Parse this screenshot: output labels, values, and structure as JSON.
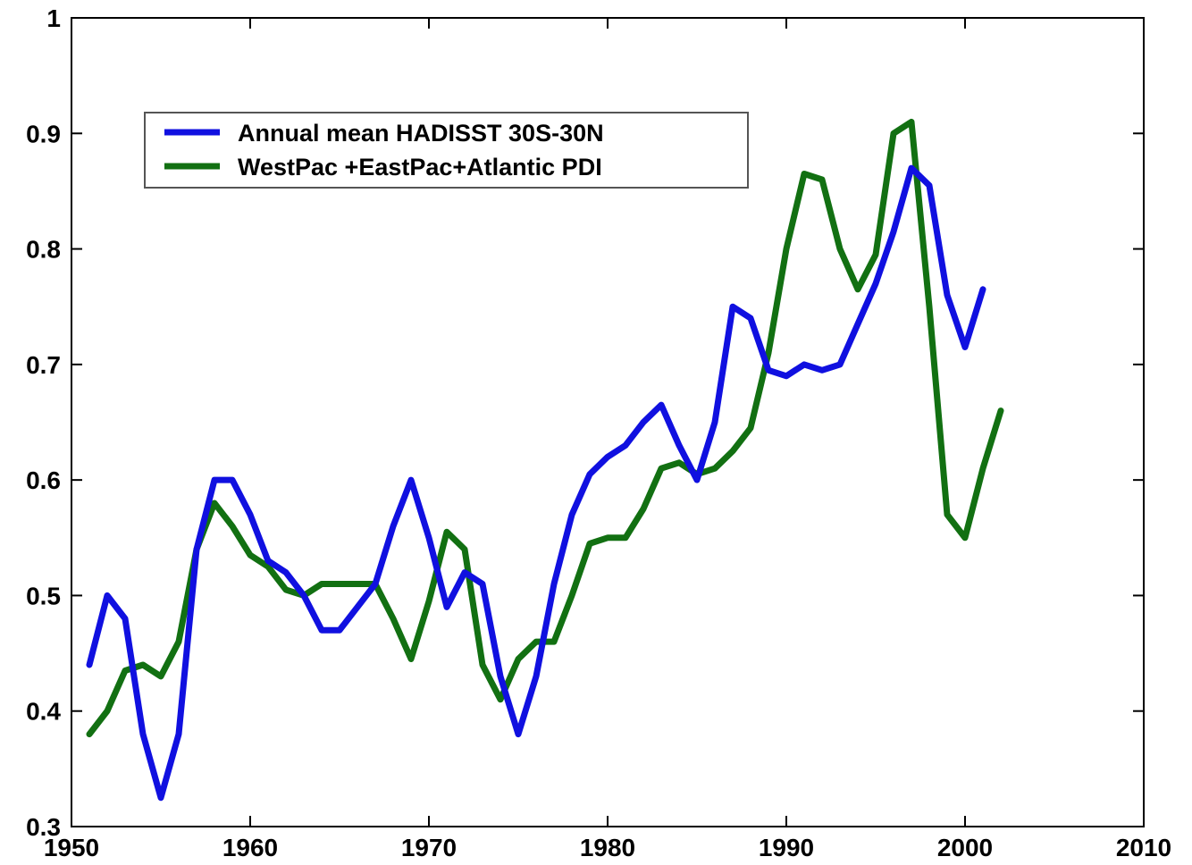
{
  "chart_data": {
    "type": "line",
    "title": "",
    "xlabel": "",
    "ylabel": "",
    "xlim": [
      1950,
      2010
    ],
    "ylim": [
      0.3,
      1.0
    ],
    "xticks": [
      1950,
      1960,
      1970,
      1980,
      1990,
      2000,
      2010
    ],
    "yticks": [
      0.3,
      0.4,
      0.5,
      0.6,
      0.7,
      0.8,
      0.9,
      1.0
    ],
    "x_tick_labels": [
      "1950",
      "1960",
      "1970",
      "1980",
      "1990",
      "2000",
      "2010"
    ],
    "y_tick_labels": [
      "0.3",
      "0.4",
      "0.5",
      "0.6",
      "0.7",
      "0.8",
      "0.9",
      "1"
    ],
    "grid": false,
    "legend_position": "top-left",
    "series": [
      {
        "name": "Annual mean HADISST 30S-30N",
        "color": "#1010e0",
        "x": [
          1951,
          1952,
          1953,
          1954,
          1955,
          1956,
          1957,
          1958,
          1959,
          1960,
          1961,
          1962,
          1963,
          1964,
          1965,
          1966,
          1967,
          1968,
          1969,
          1970,
          1971,
          1972,
          1973,
          1974,
          1975,
          1976,
          1977,
          1978,
          1979,
          1980,
          1981,
          1982,
          1983,
          1984,
          1985,
          1986,
          1987,
          1988,
          1989,
          1990,
          1991,
          1992,
          1993,
          1994,
          1995,
          1996,
          1997,
          1998,
          1999,
          2000,
          2001
        ],
        "y": [
          0.44,
          0.5,
          0.48,
          0.38,
          0.325,
          0.38,
          0.54,
          0.6,
          0.6,
          0.57,
          0.53,
          0.52,
          0.5,
          0.47,
          0.47,
          0.49,
          0.51,
          0.56,
          0.6,
          0.55,
          0.49,
          0.52,
          0.51,
          0.43,
          0.38,
          0.43,
          0.51,
          0.57,
          0.605,
          0.62,
          0.63,
          0.65,
          0.665,
          0.63,
          0.6,
          0.65,
          0.75,
          0.74,
          0.695,
          0.69,
          0.7,
          0.695,
          0.7,
          0.735,
          0.77,
          0.815,
          0.87,
          0.855,
          0.76,
          0.715,
          0.765
        ]
      },
      {
        "name": "WestPac +EastPac+Atlantic PDI",
        "color": "#127012",
        "x": [
          1951,
          1952,
          1953,
          1954,
          1955,
          1956,
          1957,
          1958,
          1959,
          1960,
          1961,
          1962,
          1963,
          1964,
          1965,
          1966,
          1967,
          1968,
          1969,
          1970,
          1971,
          1972,
          1973,
          1974,
          1975,
          1976,
          1977,
          1978,
          1979,
          1980,
          1981,
          1982,
          1983,
          1984,
          1985,
          1986,
          1987,
          1988,
          1989,
          1990,
          1991,
          1992,
          1993,
          1994,
          1995,
          1996,
          1997,
          1998,
          1999,
          2000,
          2001,
          2002
        ],
        "y": [
          0.38,
          0.4,
          0.435,
          0.44,
          0.43,
          0.46,
          0.54,
          0.58,
          0.56,
          0.535,
          0.525,
          0.505,
          0.5,
          0.51,
          0.51,
          0.51,
          0.51,
          0.48,
          0.445,
          0.495,
          0.555,
          0.54,
          0.44,
          0.41,
          0.445,
          0.46,
          0.46,
          0.5,
          0.545,
          0.55,
          0.55,
          0.575,
          0.61,
          0.615,
          0.605,
          0.61,
          0.625,
          0.645,
          0.71,
          0.8,
          0.865,
          0.86,
          0.8,
          0.765,
          0.795,
          0.9,
          0.91,
          0.75,
          0.57,
          0.55,
          0.61,
          0.66
        ]
      }
    ]
  }
}
